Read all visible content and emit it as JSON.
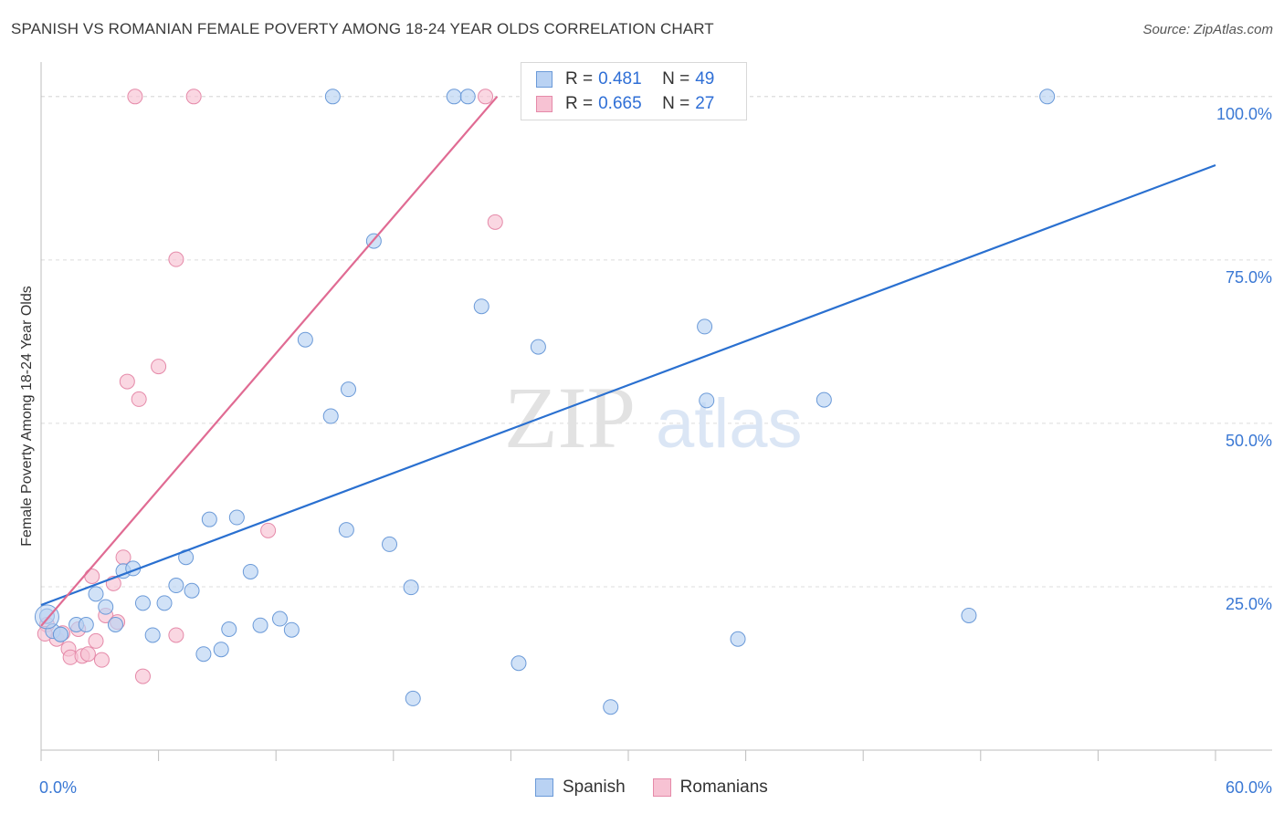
{
  "header": {
    "title": "SPANISH VS ROMANIAN FEMALE POVERTY AMONG 18-24 YEAR OLDS CORRELATION CHART",
    "source": "Source: ZipAtlas.com"
  },
  "colors": {
    "spanish_fill": "#b9d2f3",
    "spanish_stroke": "#6b9ad8",
    "spanish_line": "#2a70d0",
    "romanian_fill": "#f7c2d3",
    "romanian_stroke": "#e58aa9",
    "romanian_line": "#e06b93",
    "tick_label": "#3a78d4",
    "grid": "#dcdcdc"
  },
  "legend": {
    "rows": [
      {
        "r_label": "R =",
        "r_value": "0.481",
        "n_label": "N =",
        "n_value": "49"
      },
      {
        "r_label": "R =",
        "r_value": "0.665",
        "n_label": "N =",
        "n_value": "27"
      }
    ],
    "bottom": [
      "Spanish",
      "Romanians"
    ]
  },
  "watermark": {
    "part1": "ZIP",
    "part2": "atlas"
  },
  "chart_data": {
    "type": "scatter",
    "title": "SPANISH VS ROMANIAN FEMALE POVERTY AMONG 18-24 YEAR OLDS CORRELATION CHART",
    "xlabel": "",
    "ylabel": "Female Poverty Among 18-24 Year Olds",
    "xlim": [
      0,
      60
    ],
    "ylim": [
      0,
      105
    ],
    "x_tick_labels": [
      "0.0%",
      "60.0%"
    ],
    "y_ticks": [
      25,
      50,
      75,
      100
    ],
    "y_tick_labels": [
      "25.0%",
      "50.0%",
      "75.0%",
      "100.0%"
    ],
    "grid": true,
    "legend_position": "top-center",
    "series": [
      {
        "name": "Spanish",
        "r": 0.481,
        "n": 49,
        "trend": {
          "x": [
            0,
            60
          ],
          "y": [
            22.2,
            89.5
          ]
        },
        "points": [
          [
            0.3,
            20.5
          ],
          [
            0.6,
            18.2
          ],
          [
            1.0,
            17.7
          ],
          [
            1.8,
            19.2
          ],
          [
            2.3,
            19.2
          ],
          [
            2.8,
            23.9
          ],
          [
            3.3,
            21.9
          ],
          [
            3.8,
            19.2
          ],
          [
            4.2,
            27.4
          ],
          [
            4.7,
            27.8
          ],
          [
            5.2,
            22.5
          ],
          [
            5.7,
            17.6
          ],
          [
            6.3,
            22.5
          ],
          [
            6.9,
            25.2
          ],
          [
            7.4,
            29.5
          ],
          [
            7.7,
            24.4
          ],
          [
            8.3,
            14.7
          ],
          [
            8.6,
            35.3
          ],
          [
            9.2,
            15.4
          ],
          [
            9.6,
            18.5
          ],
          [
            10.0,
            35.6
          ],
          [
            10.7,
            27.3
          ],
          [
            11.2,
            19.1
          ],
          [
            12.2,
            20.1
          ],
          [
            12.8,
            18.4
          ],
          [
            13.5,
            62.8
          ],
          [
            14.8,
            51.1
          ],
          [
            14.9,
            100
          ],
          [
            15.6,
            33.7
          ],
          [
            15.7,
            55.2
          ],
          [
            17.0,
            77.9
          ],
          [
            17.8,
            31.5
          ],
          [
            18.9,
            24.9
          ],
          [
            19.0,
            7.9
          ],
          [
            21.1,
            100
          ],
          [
            21.8,
            100
          ],
          [
            22.5,
            67.9
          ],
          [
            24.4,
            13.3
          ],
          [
            25.4,
            61.7
          ],
          [
            27.1,
            100
          ],
          [
            29.0,
            100
          ],
          [
            29.1,
            6.6
          ],
          [
            33.9,
            64.8
          ],
          [
            34.0,
            53.5
          ],
          [
            35.6,
            17.0
          ],
          [
            40.0,
            53.6
          ],
          [
            47.4,
            20.6
          ],
          [
            51.4,
            100
          ],
          [
            1.0,
            17.7
          ]
        ]
      },
      {
        "name": "Romanians",
        "r": 0.665,
        "n": 27,
        "trend": {
          "x": [
            0,
            23.3
          ],
          "y": [
            19.0,
            100
          ]
        },
        "points": [
          [
            0.3,
            19.2
          ],
          [
            0.8,
            17.0
          ],
          [
            1.1,
            17.9
          ],
          [
            1.4,
            15.5
          ],
          [
            1.5,
            14.2
          ],
          [
            1.9,
            18.5
          ],
          [
            2.1,
            14.4
          ],
          [
            2.4,
            14.7
          ],
          [
            2.6,
            26.6
          ],
          [
            2.8,
            16.7
          ],
          [
            3.1,
            13.8
          ],
          [
            3.3,
            20.6
          ],
          [
            3.7,
            25.5
          ],
          [
            3.9,
            19.6
          ],
          [
            4.2,
            29.5
          ],
          [
            4.4,
            56.4
          ],
          [
            4.8,
            100
          ],
          [
            5.0,
            53.7
          ],
          [
            5.2,
            11.3
          ],
          [
            6.0,
            58.7
          ],
          [
            6.9,
            17.6
          ],
          [
            6.9,
            75.1
          ],
          [
            7.8,
            100
          ],
          [
            11.6,
            33.6
          ],
          [
            22.7,
            100
          ],
          [
            23.2,
            80.8
          ],
          [
            0.2,
            17.8
          ]
        ]
      }
    ]
  }
}
